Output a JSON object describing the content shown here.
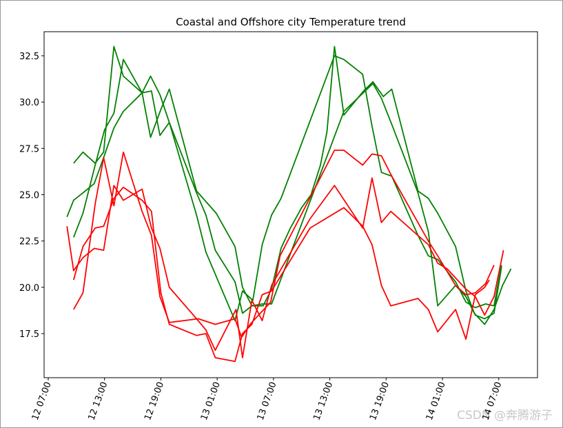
{
  "chart_data": {
    "type": "line",
    "title": "Coastal and Offshore city Temperature trend",
    "watermark": "CSDN @奔腾游子",
    "xlim": [
      6.56,
      59.13
    ],
    "ylim": [
      15.12,
      33.8
    ],
    "xticks": [
      {
        "value": 7,
        "label": "12 07:00"
      },
      {
        "value": 13,
        "label": "12 13:00"
      },
      {
        "value": 19,
        "label": "12 19:00"
      },
      {
        "value": 25,
        "label": "13 01:00"
      },
      {
        "value": 31,
        "label": "13 07:00"
      },
      {
        "value": 37,
        "label": "13 13:00"
      },
      {
        "value": 43,
        "label": "13 19:00"
      },
      {
        "value": 49,
        "label": "14 01:00"
      },
      {
        "value": 55,
        "label": "14 07:00"
      }
    ],
    "yticks": [
      17.5,
      {
        "value": 20,
        "label": "20.0"
      },
      22.5,
      {
        "value": 25,
        "label": "25.0"
      },
      27.5,
      {
        "value": 30,
        "label": "30.0"
      },
      32.5
    ],
    "series": [
      {
        "color": "#008000",
        "x": [
          9.0,
          9.7,
          10.7,
          11.9,
          12.9,
          14.0,
          15.0,
          17.0,
          17.9,
          18.9,
          19.9,
          22.8,
          23.8,
          24.8,
          26.9,
          27.7,
          28.7,
          29.9,
          30.8,
          31.8,
          32.8,
          34.0,
          35.0,
          36.0,
          36.7,
          37.5,
          38.5,
          40.6,
          41.6,
          42.7,
          43.6,
          46.4,
          47.5,
          48.5,
          50.4,
          51.5,
          52.4,
          53.5,
          54.5,
          55.4,
          56.3
        ],
        "values": [
          23.8,
          24.7,
          25.1,
          25.6,
          27.0,
          28.6,
          29.5,
          30.5,
          31.4,
          30.4,
          28.9,
          25.1,
          23.9,
          22.0,
          20.3,
          18.6,
          19.0,
          19.0,
          19.9,
          22.1,
          23.2,
          24.3,
          25.0,
          26.6,
          28.4,
          33.0,
          29.3,
          30.6,
          31.1,
          30.3,
          30.7,
          25.2,
          24.8,
          24.0,
          22.2,
          19.8,
          18.6,
          18.0,
          18.8,
          20.1,
          21.0
        ]
      },
      {
        "color": "#008000",
        "x": [
          9.7,
          10.7,
          12.0,
          12.9,
          14.0,
          15.0,
          17.0,
          18.0,
          18.9,
          19.9,
          22.8,
          23.8,
          26.9,
          27.7,
          28.8,
          29.8,
          30.8,
          31.8,
          37.5,
          38.5,
          40.5,
          41.5,
          42.5,
          43.6,
          46.4,
          47.5,
          48.5,
          50.4,
          51.5,
          52.5,
          53.6,
          54.5,
          55.3
        ],
        "values": [
          26.7,
          27.3,
          26.7,
          27.3,
          33.0,
          31.4,
          30.5,
          30.6,
          28.2,
          28.9,
          23.9,
          21.9,
          18.2,
          19.8,
          19.3,
          22.3,
          23.9,
          24.8,
          32.5,
          32.3,
          31.5,
          28.7,
          26.2,
          26.0,
          22.8,
          21.7,
          21.5,
          20.3,
          19.2,
          18.9,
          19.1,
          19.0,
          21.2
        ]
      },
      {
        "color": "#008000",
        "x": [
          9.7,
          10.7,
          12.0,
          13.0,
          14.0,
          15.0,
          17.0,
          17.9,
          19.0,
          19.9,
          22.8,
          24.9,
          26.9,
          27.7,
          28.7,
          29.8,
          30.8,
          38.5,
          41.6,
          42.5,
          43.6,
          46.4,
          47.5,
          48.5,
          50.4,
          51.5,
          52.5,
          53.5,
          54.5,
          55.3
        ],
        "values": [
          22.7,
          24.0,
          26.6,
          28.5,
          29.4,
          32.3,
          30.5,
          28.1,
          29.6,
          30.7,
          25.2,
          24.0,
          22.2,
          20.0,
          19.0,
          19.1,
          19.1,
          29.5,
          31.0,
          30.2,
          28.8,
          25.1,
          23.0,
          19.0,
          20.1,
          19.5,
          18.5,
          18.3,
          18.6,
          21.1
        ]
      },
      {
        "color": "#ff0000",
        "x": [
          9.0,
          9.7,
          10.7,
          11.9,
          12.9,
          14.0,
          15.0,
          17.0,
          18.0,
          18.9,
          19.9,
          22.8,
          23.8,
          24.8,
          27.0,
          27.7,
          28.7,
          29.8,
          30.8,
          34.9,
          37.5,
          40.5,
          41.5,
          42.5,
          43.5,
          47.5,
          48.5,
          49.5,
          51.5,
          52.5,
          53.5,
          54.5,
          55.5
        ],
        "values": [
          23.3,
          20.9,
          21.6,
          22.1,
          22.0,
          25.5,
          24.7,
          25.3,
          23.2,
          22.1,
          20.0,
          18.3,
          17.7,
          16.6,
          18.8,
          16.2,
          19.3,
          18.2,
          20.1,
          23.7,
          25.5,
          23.2,
          25.9,
          23.5,
          24.1,
          22.3,
          21.3,
          21.0,
          19.9,
          19.5,
          18.5,
          19.5,
          22.0
        ]
      },
      {
        "color": "#ff0000",
        "x": [
          9.7,
          10.7,
          12.0,
          12.9,
          14.0,
          15.0,
          17.0,
          18.0,
          18.9,
          19.9,
          23.0,
          24.8,
          26.9,
          27.6,
          28.5,
          30.7,
          31.7,
          37.5,
          38.5,
          40.5,
          41.5,
          42.5,
          43.6,
          47.5,
          48.5,
          50.4,
          51.5,
          52.5,
          53.6,
          54.5
        ],
        "values": [
          18.8,
          19.7,
          24.5,
          27.0,
          24.4,
          27.3,
          24.1,
          22.8,
          19.5,
          18.1,
          18.3,
          18.0,
          18.3,
          17.3,
          18.0,
          19.2,
          21.7,
          27.4,
          27.4,
          26.6,
          27.2,
          27.1,
          26.0,
          22.5,
          21.7,
          20.1,
          19.6,
          19.7,
          20.2,
          21.2
        ]
      },
      {
        "color": "#ff0000",
        "x": [
          9.7,
          10.7,
          12.0,
          12.9,
          14.0,
          15.0,
          17.0,
          18.0,
          19.0,
          19.9,
          22.8,
          23.8,
          24.8,
          26.9,
          27.7,
          28.7,
          29.8,
          30.8,
          34.9,
          38.5,
          40.5,
          41.5,
          42.5,
          43.5,
          46.4,
          47.5,
          48.5,
          50.4,
          51.5,
          52.5,
          53.5,
          54.0
        ],
        "values": [
          20.4,
          22.2,
          23.2,
          23.3,
          24.8,
          25.4,
          24.7,
          24.1,
          19.7,
          18.0,
          17.4,
          17.5,
          16.2,
          16.0,
          17.5,
          18.0,
          19.6,
          19.8,
          23.2,
          24.3,
          23.3,
          22.3,
          20.1,
          19.0,
          19.4,
          18.8,
          17.6,
          18.8,
          17.2,
          19.6,
          20.0,
          20.4
        ]
      }
    ]
  }
}
